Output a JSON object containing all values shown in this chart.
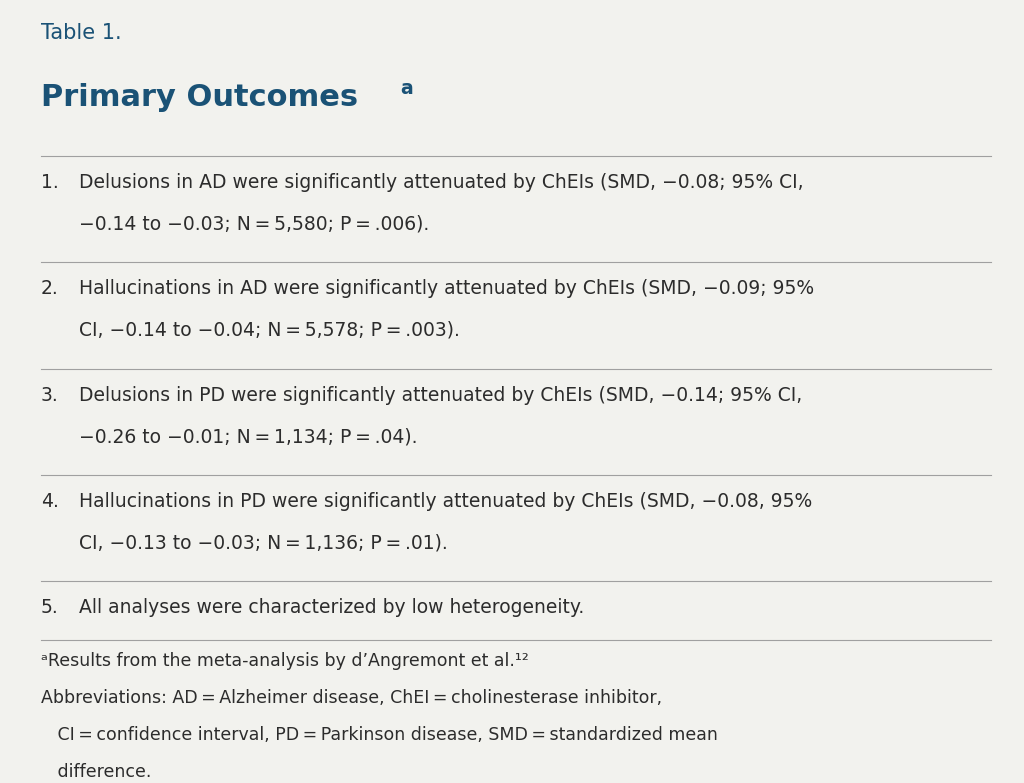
{
  "background_color": "#f2f2ee",
  "text_color": "#2c2c2c",
  "header_color": "#1a5276",
  "title_label": "Table 1.",
  "title_fontsize": 15,
  "heading": "Primary Outcomes",
  "heading_superscript": "a",
  "heading_fontsize": 22,
  "heading_color": "#1a5276",
  "items": [
    {
      "number": "1.",
      "line1": "Delusions in AD were significantly attenuated by ChEIs (SMD, −0.08; 95% CI,",
      "line2": "−0.14 to −0.03; N = 5,580; P = .006)."
    },
    {
      "number": "2.",
      "line1": "Hallucinations in AD were significantly attenuated by ChEIs (SMD, −0.09; 95%",
      "line2": "CI, −0.14 to −0.04; N = 5,578; P = .003)."
    },
    {
      "number": "3.",
      "line1": "Delusions in PD were significantly attenuated by ChEIs (SMD, −0.14; 95% CI,",
      "line2": "−0.26 to −0.01; N = 1,134; P = .04)."
    },
    {
      "number": "4.",
      "line1": "Hallucinations in PD were significantly attenuated by ChEIs (SMD, −0.08, 95%",
      "line2": "CI, −0.13 to −0.03; N = 1,136; P = .01)."
    },
    {
      "number": "5.",
      "line1": "All analyses were characterized by low heterogeneity.",
      "line2": ""
    }
  ],
  "footnote_lines": [
    "ᵃResults from the meta-analysis by d’Angremont et al.¹²",
    "Abbreviations: AD = Alzheimer disease, ChEI = cholinesterase inhibitor,",
    "   CI = confidence interval, PD = Parkinson disease, SMD = standardized mean",
    "   difference."
  ],
  "line_color": "#a0a0a0",
  "item_fontsize": 13.5,
  "footnote_fontsize": 12.5
}
